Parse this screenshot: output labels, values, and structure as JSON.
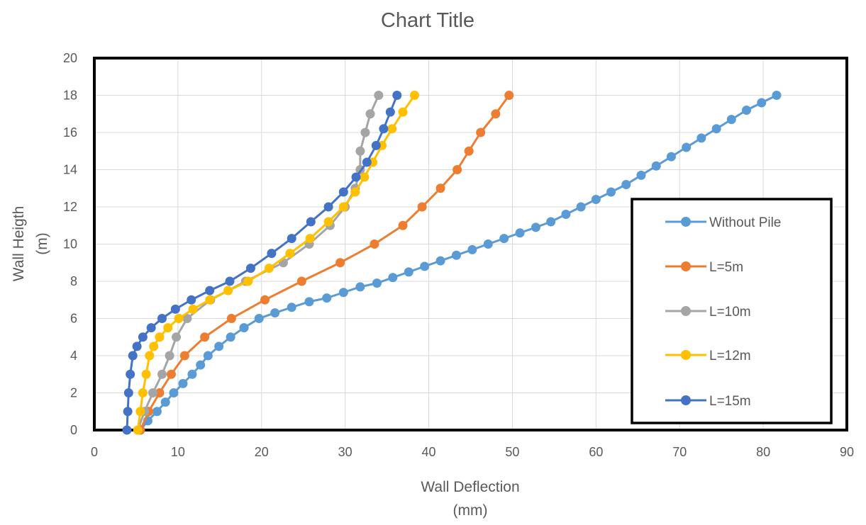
{
  "chart_data": {
    "type": "scatter",
    "title": "Chart Title",
    "xlabel_lines": [
      "Wall Deflection",
      "(mm)"
    ],
    "ylabel_lines": [
      "Wall Heigth",
      "(m)"
    ],
    "xlim": [
      0,
      90
    ],
    "ylim": [
      0,
      20
    ],
    "xticks": [
      0,
      10,
      20,
      30,
      40,
      50,
      60,
      70,
      80,
      90
    ],
    "yticks": [
      0,
      2,
      4,
      6,
      8,
      10,
      12,
      14,
      16,
      18,
      20
    ],
    "grid": true,
    "legend_position": "right",
    "series": [
      {
        "name": "Without Pile",
        "color": "#5B9BD5",
        "x": [
          5.5,
          6.4,
          7.5,
          8.5,
          9.5,
          10.6,
          11.7,
          12.7,
          13.6,
          14.9,
          16.3,
          17.9,
          19.7,
          21.6,
          23.6,
          25.7,
          27.8,
          29.8,
          31.8,
          33.8,
          35.7,
          37.6,
          39.5,
          41.4,
          43.3,
          45.2,
          47.1,
          49.0,
          50.9,
          52.8,
          54.6,
          56.4,
          58.2,
          60.0,
          61.8,
          63.6,
          65.4,
          67.2,
          69.0,
          70.8,
          72.6,
          74.4,
          76.2,
          78.0,
          79.8,
          81.6
        ],
        "y": [
          0,
          0.5,
          1.0,
          1.5,
          2.0,
          2.5,
          3.0,
          3.5,
          4.0,
          4.5,
          5.0,
          5.5,
          6.0,
          6.3,
          6.6,
          6.9,
          7.1,
          7.4,
          7.7,
          7.9,
          8.2,
          8.5,
          8.8,
          9.1,
          9.4,
          9.7,
          10.0,
          10.3,
          10.6,
          10.9,
          11.2,
          11.6,
          12.0,
          12.4,
          12.8,
          13.2,
          13.7,
          14.2,
          14.7,
          15.2,
          15.7,
          16.2,
          16.7,
          17.2,
          17.6,
          18.0
        ]
      },
      {
        "name": "L=5m",
        "color": "#ED7D31",
        "x": [
          5.5,
          6.5,
          7.8,
          9.2,
          10.8,
          13.2,
          16.4,
          20.4,
          24.8,
          29.4,
          33.5,
          36.9,
          39.2,
          41.4,
          43.4,
          44.8,
          46.2,
          48.0,
          49.6
        ],
        "y": [
          0,
          1,
          2,
          3,
          4,
          5,
          6,
          7,
          8,
          9,
          10,
          11,
          12,
          13,
          14,
          15,
          16,
          17,
          18
        ]
      },
      {
        "name": "L=10m",
        "color": "#A5A5A5",
        "x": [
          5.2,
          6.0,
          7.0,
          8.1,
          9.0,
          9.8,
          11.1,
          13.9,
          18.1,
          22.6,
          25.7,
          28.2,
          30.0,
          31.2,
          31.8,
          31.8,
          32.4,
          33.0,
          34.0
        ],
        "y": [
          0,
          1,
          2,
          3,
          4,
          5,
          6,
          7,
          8,
          9,
          10,
          11,
          12,
          13,
          14,
          15,
          16,
          17,
          18
        ]
      },
      {
        "name": "L=12m",
        "color": "#FFC000",
        "x": [
          5.2,
          5.5,
          5.8,
          6.2,
          6.6,
          7.1,
          7.8,
          8.8,
          10.1,
          11.8,
          13.8,
          16.0,
          18.4,
          20.9,
          23.4,
          25.8,
          28.0,
          29.8,
          31.2,
          32.3,
          33.3,
          34.4,
          35.6,
          36.9,
          38.3
        ],
        "y": [
          0,
          1,
          2,
          3,
          4,
          4.5,
          5,
          5.5,
          6,
          6.5,
          7,
          7.5,
          8,
          8.7,
          9.5,
          10.3,
          11.2,
          12.0,
          12.8,
          13.6,
          14.4,
          15.3,
          16.2,
          17.1,
          18.0
        ]
      },
      {
        "name": "L=15m",
        "color": "#4472C4",
        "x": [
          3.9,
          4.0,
          4.1,
          4.3,
          4.6,
          5.1,
          5.8,
          6.8,
          8.1,
          9.7,
          11.6,
          13.8,
          16.2,
          18.7,
          21.2,
          23.6,
          25.9,
          28.0,
          29.8,
          31.3,
          32.6,
          33.7,
          34.6,
          35.4,
          36.2
        ],
        "y": [
          0,
          1,
          2,
          3,
          4,
          4.5,
          5,
          5.5,
          6,
          6.5,
          7,
          7.5,
          8,
          8.7,
          9.5,
          10.3,
          11.2,
          12.0,
          12.8,
          13.6,
          14.4,
          15.3,
          16.2,
          17.1,
          18.0
        ]
      }
    ]
  }
}
